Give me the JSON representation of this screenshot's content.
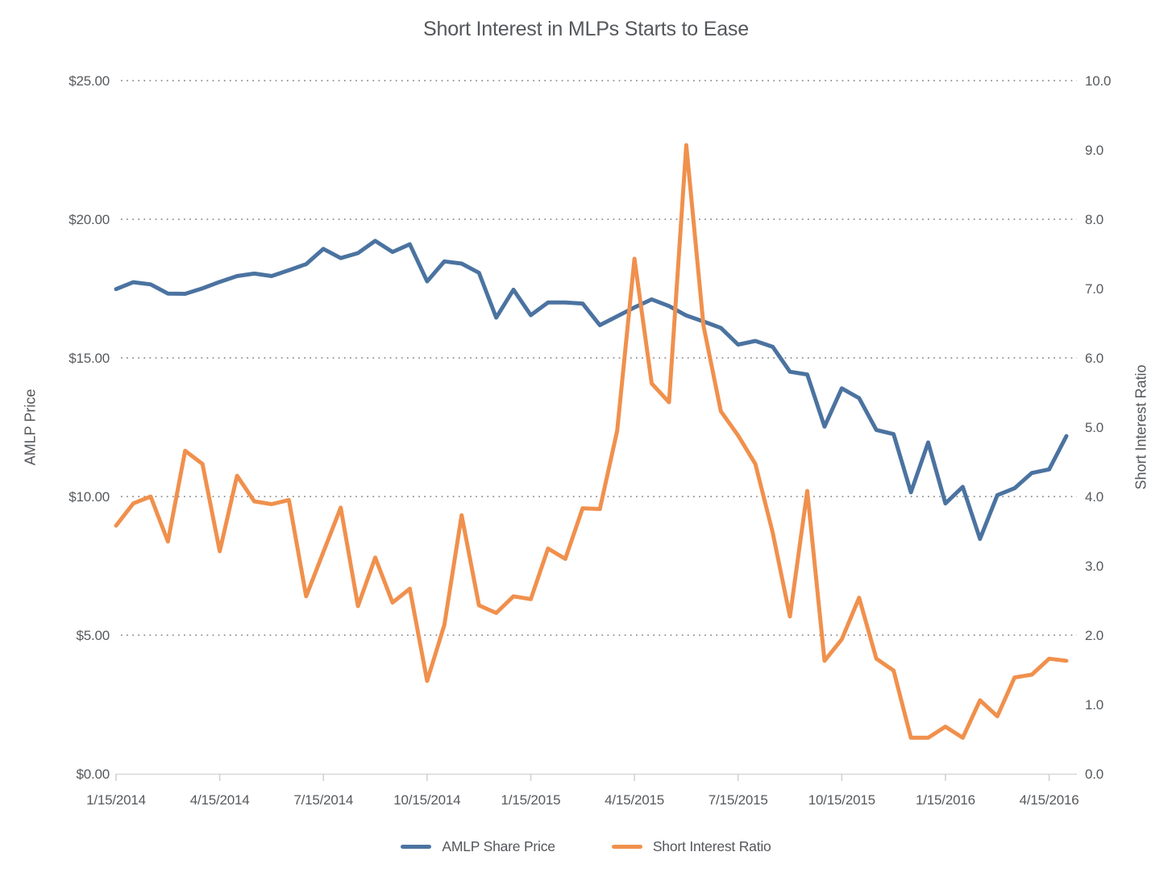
{
  "title": "Short Interest in MLPs Starts to Ease",
  "left_axis": {
    "label": "AMLP Price",
    "ticks": [
      "$25.00",
      "$20.00",
      "$15.00",
      "$10.00",
      "$5.00",
      "$0.00"
    ],
    "tick_values": [
      25,
      20,
      15,
      10,
      5,
      0
    ]
  },
  "right_axis": {
    "label": "Short Interest Ratio",
    "ticks": [
      "10.0",
      "9.0",
      "8.0",
      "7.0",
      "6.0",
      "5.0",
      "4.0",
      "3.0",
      "2.0",
      "1.0",
      "0.0"
    ],
    "tick_values": [
      10,
      9,
      8,
      7,
      6,
      5,
      4,
      3,
      2,
      1,
      0
    ]
  },
  "legend": [
    {
      "label": "AMLP Share Price",
      "color": "#4b73a0"
    },
    {
      "label": "Short Interest Ratio",
      "color": "#f0904d"
    }
  ],
  "chart_data": {
    "type": "line",
    "title": "Short Interest in MLPs Starts to Ease",
    "xlabel": "",
    "ylabel_left": "AMLP Price",
    "ylabel_right": "Short Interest Ratio",
    "left_ylim": [
      0,
      25
    ],
    "right_ylim": [
      0,
      10
    ],
    "grid": "dotted-horizontal",
    "legend_position": "bottom",
    "x": [
      "1/15/2014",
      "1/31/2014",
      "2/15/2014",
      "2/28/2014",
      "3/15/2014",
      "3/31/2014",
      "4/15/2014",
      "4/30/2014",
      "5/15/2014",
      "5/30/2014",
      "6/15/2014",
      "6/30/2014",
      "7/15/2014",
      "7/31/2014",
      "8/15/2014",
      "8/29/2014",
      "9/15/2014",
      "9/30/2014",
      "10/15/2014",
      "10/31/2014",
      "11/15/2014",
      "11/28/2014",
      "12/15/2014",
      "12/31/2014",
      "1/15/2015",
      "1/30/2015",
      "2/15/2015",
      "2/27/2015",
      "3/15/2015",
      "3/31/2015",
      "4/15/2015",
      "4/30/2015",
      "5/15/2015",
      "5/29/2015",
      "6/15/2015",
      "6/30/2015",
      "7/15/2015",
      "7/31/2015",
      "8/15/2015",
      "8/31/2015",
      "9/15/2015",
      "9/30/2015",
      "10/15/2015",
      "10/30/2015",
      "11/15/2015",
      "11/30/2015",
      "12/15/2015",
      "12/31/2015",
      "1/15/2016",
      "1/29/2016",
      "2/15/2016",
      "2/29/2016",
      "3/15/2016",
      "3/31/2016",
      "4/15/2016",
      "4/29/2016"
    ],
    "x_tick_labels": [
      "1/15/2014",
      "4/15/2014",
      "7/15/2014",
      "10/15/2014",
      "1/15/2015",
      "4/15/2015",
      "7/15/2015",
      "10/15/2015",
      "1/15/2016",
      "4/15/2016"
    ],
    "x_tick_every": 6,
    "series": [
      {
        "name": "AMLP Share Price",
        "axis": "left",
        "color": "#4b73a0",
        "values": [
          17.48,
          17.73,
          17.65,
          17.32,
          17.31,
          17.51,
          17.74,
          17.95,
          18.04,
          17.95,
          18.16,
          18.38,
          18.93,
          18.6,
          18.78,
          19.22,
          18.82,
          19.1,
          17.76,
          18.48,
          18.4,
          18.07,
          16.45,
          17.46,
          16.54,
          17.0,
          17.0,
          16.96,
          16.18,
          16.5,
          16.82,
          17.11,
          16.87,
          16.53,
          16.31,
          16.08,
          15.48,
          15.61,
          15.4,
          14.5,
          14.4,
          12.52,
          13.9,
          13.55,
          12.4,
          12.25,
          10.15,
          11.95,
          9.75,
          10.35,
          8.47,
          10.05,
          10.3,
          10.85,
          10.98,
          12.18
        ]
      },
      {
        "name": "Short Interest Ratio",
        "axis": "right",
        "color": "#f0904d",
        "values": [
          3.58,
          3.9,
          4.0,
          3.35,
          4.66,
          4.47,
          3.21,
          4.3,
          3.93,
          3.89,
          3.95,
          2.56,
          3.2,
          3.84,
          2.42,
          3.12,
          2.47,
          2.67,
          1.34,
          2.15,
          3.73,
          2.43,
          2.32,
          2.56,
          2.52,
          3.25,
          3.1,
          3.83,
          3.82,
          4.95,
          7.43,
          5.63,
          5.36,
          9.07,
          6.46,
          5.23,
          4.88,
          4.47,
          3.48,
          2.27,
          4.08,
          1.63,
          1.94,
          2.54,
          1.66,
          1.49,
          0.52,
          0.52,
          0.68,
          0.52,
          1.06,
          0.83,
          1.39,
          1.43,
          1.66,
          1.63
        ]
      }
    ]
  }
}
